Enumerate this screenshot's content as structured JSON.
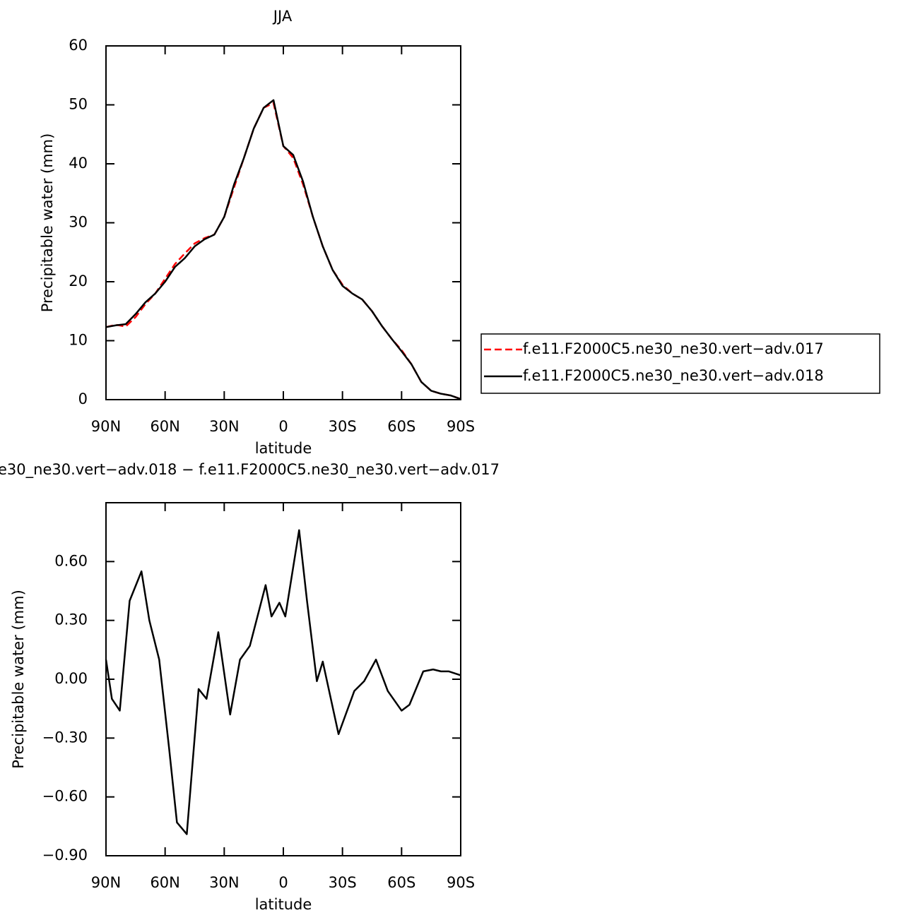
{
  "chart_data": [
    {
      "type": "line",
      "title": "JJA",
      "xlabel": "latitude",
      "ylabel": "Precipitable water (mm)",
      "x": [
        90,
        85,
        80,
        75,
        70,
        65,
        60,
        55,
        50,
        45,
        40,
        35,
        30,
        25,
        20,
        15,
        10,
        5,
        0,
        -5,
        -10,
        -15,
        -20,
        -25,
        -30,
        -35,
        -40,
        -45,
        -50,
        -55,
        -60,
        -65,
        -70,
        -75,
        -80,
        -85,
        -90
      ],
      "series": [
        {
          "name": "f.e11.F2000C5.ne30_ne30.vert−adv.017",
          "color": "#ff0000",
          "line_style": "dashed",
          "values": [
            12.3,
            12.7,
            12.4,
            14,
            16.2,
            18,
            20.5,
            23,
            24.8,
            26.5,
            27.4,
            28,
            31,
            36,
            41,
            46,
            49.5,
            50.3,
            43,
            41,
            36.5,
            31,
            26,
            22,
            19.5,
            18,
            17,
            15,
            12.5,
            10.3,
            8.4,
            6,
            3,
            1.5,
            1,
            0.7,
            0.1
          ]
        },
        {
          "name": "f.e11.F2000C5.ne30_ne30.vert−adv.018",
          "color": "#000000",
          "line_style": "solid",
          "values": [
            12.3,
            12.6,
            12.8,
            14.5,
            16.5,
            18,
            20,
            22.5,
            24,
            26,
            27.2,
            28,
            31,
            36.5,
            41,
            46,
            49.5,
            50.8,
            43,
            41.5,
            37,
            31,
            26,
            22,
            19.3,
            18,
            17,
            15,
            12.5,
            10.3,
            8.2,
            6,
            3,
            1.5,
            1,
            0.7,
            0.1
          ]
        }
      ],
      "xlim": [
        90,
        -90
      ],
      "xticks": [
        {
          "value": 90,
          "label": "90N"
        },
        {
          "value": 60,
          "label": "60N"
        },
        {
          "value": 30,
          "label": "30N"
        },
        0,
        {
          "value": -30,
          "label": "30S"
        },
        {
          "value": -60,
          "label": "60S"
        },
        {
          "value": -90,
          "label": "90S"
        }
      ],
      "ylim": [
        0,
        60
      ],
      "yticks": [
        0,
        10,
        20,
        30,
        40,
        50,
        60
      ],
      "legend": "right"
    },
    {
      "type": "line",
      "title": "e30_ne30.vert−adv.018 − f.e11.F2000C5.ne30_ne30.vert−adv.017",
      "xlabel": "latitude",
      "ylabel": "Precipitable water (mm)",
      "x": [
        90,
        87,
        83,
        78,
        72,
        68,
        63,
        58,
        54,
        49,
        43,
        39,
        33,
        27,
        22,
        17,
        9,
        6,
        2,
        -1,
        -8,
        -12,
        -17,
        -20,
        -28,
        -36,
        -41,
        -47,
        -53,
        -60,
        -64,
        -71,
        -76,
        -80,
        -84,
        -90
      ],
      "values": [
        0.1,
        -0.1,
        -0.16,
        0.4,
        0.55,
        0.3,
        0.1,
        -0.35,
        -0.73,
        -0.79,
        -0.05,
        -0.1,
        0.24,
        -0.18,
        0.1,
        0.17,
        0.48,
        0.32,
        0.39,
        0.32,
        0.76,
        0.4,
        -0.01,
        0.09,
        -0.28,
        -0.06,
        -0.01,
        0.1,
        -0.06,
        -0.16,
        -0.13,
        0.04,
        0.05,
        0.04,
        0.04,
        0.02
      ],
      "color": "#000000",
      "xlim": [
        90,
        -90
      ],
      "xticks": [
        {
          "value": 90,
          "label": "90N"
        },
        {
          "value": 60,
          "label": "60N"
        },
        {
          "value": 30,
          "label": "30N"
        },
        0,
        {
          "value": -30,
          "label": "30S"
        },
        {
          "value": -60,
          "label": "60S"
        },
        {
          "value": -90,
          "label": "90S"
        }
      ],
      "ylim": [
        -0.9,
        0.9
      ],
      "yticks": [
        {
          "value": -0.9,
          "label": "−0.90"
        },
        {
          "value": -0.6,
          "label": "−0.60"
        },
        {
          "value": -0.3,
          "label": "−0.30"
        },
        {
          "value": 0,
          "label": "0.00"
        },
        {
          "value": 0.3,
          "label": "0.30"
        },
        {
          "value": 0.6,
          "label": "0.60"
        }
      ]
    }
  ]
}
